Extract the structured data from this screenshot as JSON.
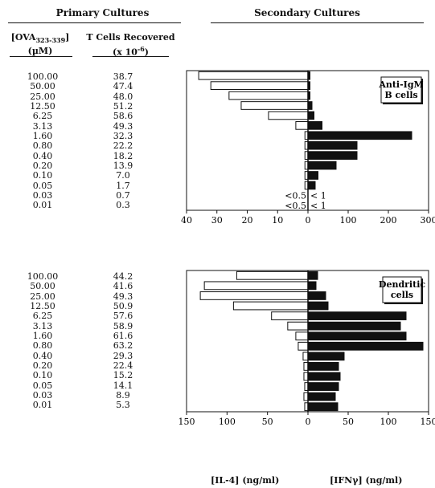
{
  "headers": {
    "primary": "Primary Cultures",
    "secondary": "Secondary Cultures"
  },
  "columns": {
    "ova_line1_prefix": "[OVA",
    "ova_line1_sub": "323-339",
    "ova_line1_suffix": "]",
    "ova_line2": "(µM)",
    "tcells_line1": "T Cells Recovered",
    "tcells_line2_prefix": "(x 10",
    "tcells_line2_sup": "-6",
    "tcells_line2_suffix": ")"
  },
  "axis_labels": {
    "left": "[IL-4] (ng/ml)",
    "right": "[IFNγ] (ng/ml)"
  },
  "chart_data": [
    {
      "type": "bar",
      "panel": "Anti-IgM B cells",
      "label_lines": [
        "Anti-IgM",
        "B cells"
      ],
      "categories": [
        "100.00",
        "50.00",
        "25.00",
        "12.50",
        "6.25",
        "3.13",
        "1.60",
        "0.80",
        "0.40",
        "0.20",
        "0.10",
        "0.05",
        "0.03",
        "0.01"
      ],
      "t_cells_recovered": [
        "38.7",
        "47.4",
        "48.0",
        "51.2",
        "58.6",
        "49.3",
        "32.3",
        "22.2",
        "18.2",
        "13.9",
        "7.0",
        "1.7",
        "0.7",
        "0.3"
      ],
      "series": [
        {
          "name": "[IL-4] (ng/ml)",
          "color": "#ffffff",
          "values": [
            36,
            32,
            26,
            22,
            13,
            4,
            1,
            1,
            1,
            1,
            1,
            1,
            null,
            null
          ]
        },
        {
          "name": "[IFNγ] (ng/ml)",
          "color": "#111111",
          "values": [
            5,
            5,
            5,
            10,
            15,
            35,
            258,
            122,
            122,
            70,
            25,
            18,
            null,
            null
          ]
        }
      ],
      "annotations": [
        {
          "row": 12,
          "left": "<0.5",
          "right": "< 1"
        },
        {
          "row": 13,
          "left": "<0.5",
          "right": "< 1"
        }
      ],
      "left_axis": {
        "ticks": [
          40,
          30,
          20,
          10,
          0
        ],
        "range": [
          40,
          0
        ]
      },
      "right_axis": {
        "ticks": [
          0,
          100,
          200,
          300
        ],
        "range": [
          0,
          300
        ]
      }
    },
    {
      "type": "bar",
      "panel": "Dendritic cells",
      "label_lines": [
        "Dendritic",
        "cells"
      ],
      "categories": [
        "100.00",
        "50.00",
        "25.00",
        "12.50",
        "6.25",
        "3.13",
        "1.60",
        "0.80",
        "0.40",
        "0.20",
        "0.10",
        "0.05",
        "0.03",
        "0.01"
      ],
      "t_cells_recovered": [
        "44.2",
        "41.6",
        "49.3",
        "50.9",
        "57.6",
        "58.9",
        "61.6",
        "63.2",
        "29.3",
        "22.4",
        "15.2",
        "14.1",
        "8.9",
        "5.3"
      ],
      "series": [
        {
          "name": "[IL-4] (ng/ml)",
          "color": "#ffffff",
          "values": [
            88,
            128,
            133,
            92,
            45,
            25,
            15,
            12,
            6,
            5,
            5,
            4,
            5,
            4
          ]
        },
        {
          "name": "[IFNγ] (ng/ml)",
          "color": "#111111",
          "values": [
            12,
            10,
            22,
            25,
            122,
            115,
            122,
            143,
            45,
            38,
            40,
            38,
            34,
            37
          ]
        }
      ],
      "annotations": [],
      "left_axis": {
        "ticks": [
          150,
          100,
          50,
          0
        ],
        "range": [
          150,
          0
        ]
      },
      "right_axis": {
        "ticks": [
          0,
          50,
          100,
          150
        ],
        "range": [
          0,
          150
        ]
      }
    }
  ]
}
